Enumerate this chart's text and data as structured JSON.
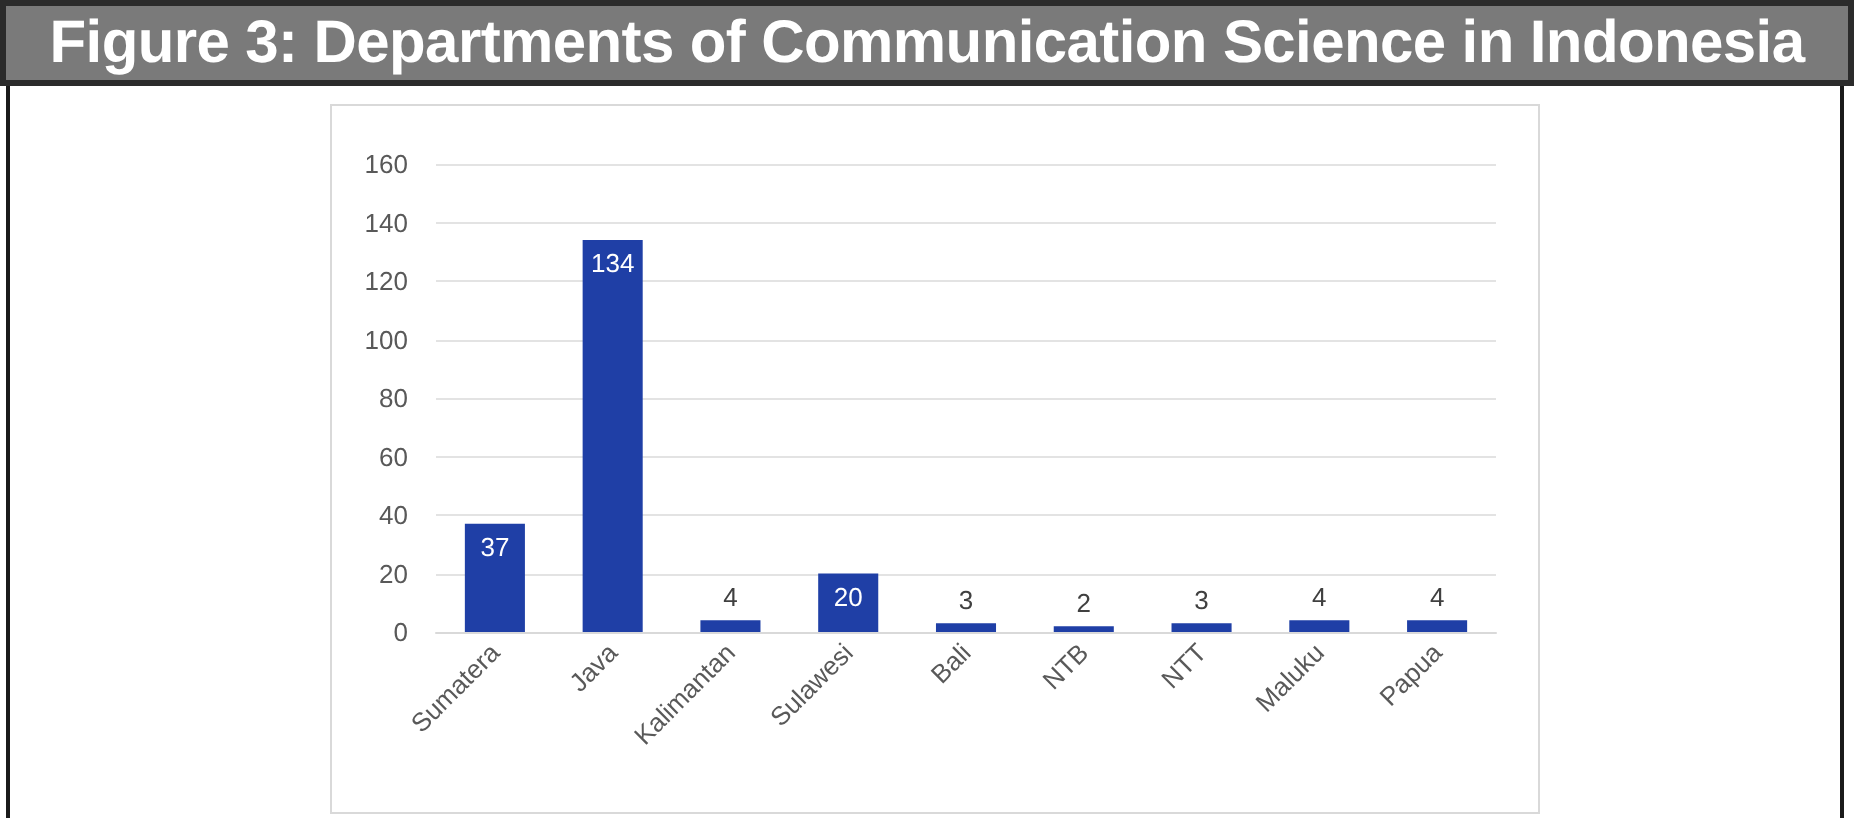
{
  "chart_data": {
    "type": "bar",
    "title": "Figure 3: Departments of Communication Science in Indonesia",
    "categories": [
      "Sumatera",
      "Java",
      "Kalimantan",
      "Sulawesi",
      "Bali",
      "NTB",
      "NTT",
      "Maluku",
      "Papua"
    ],
    "values": [
      37,
      134,
      4,
      20,
      3,
      2,
      3,
      4,
      4
    ],
    "color": "#1f3fa6",
    "ylim": [
      0,
      160
    ],
    "yticks": [
      0,
      20,
      40,
      60,
      80,
      100,
      120,
      140,
      160
    ],
    "grid": "y",
    "data_labels": true
  }
}
